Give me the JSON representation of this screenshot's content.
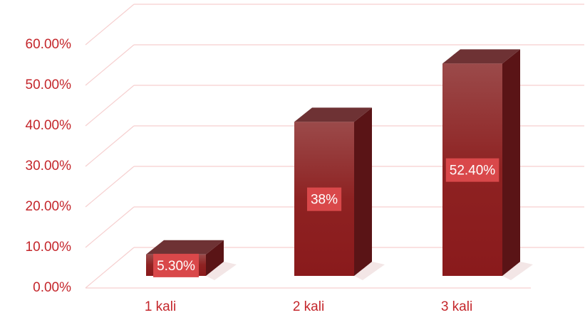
{
  "chart_data": {
    "type": "bar",
    "categories": [
      "1 kali",
      "2 kali",
      "3 kali"
    ],
    "values": [
      5.3,
      38,
      52.4
    ],
    "value_labels": [
      "5.30%",
      "38%",
      "52.40%"
    ],
    "color": "#8b1c1f",
    "ylim": [
      0,
      60
    ],
    "yticks": [
      {
        "value": 0,
        "label": "0.00%"
      },
      {
        "value": 10,
        "label": "10.00%"
      },
      {
        "value": 20,
        "label": "20.00%"
      },
      {
        "value": 30,
        "label": "30.00%"
      },
      {
        "value": 40,
        "label": "40.00%"
      },
      {
        "value": 50,
        "label": "50.00%"
      },
      {
        "value": 60,
        "label": "60.00%"
      }
    ],
    "grid": true
  }
}
